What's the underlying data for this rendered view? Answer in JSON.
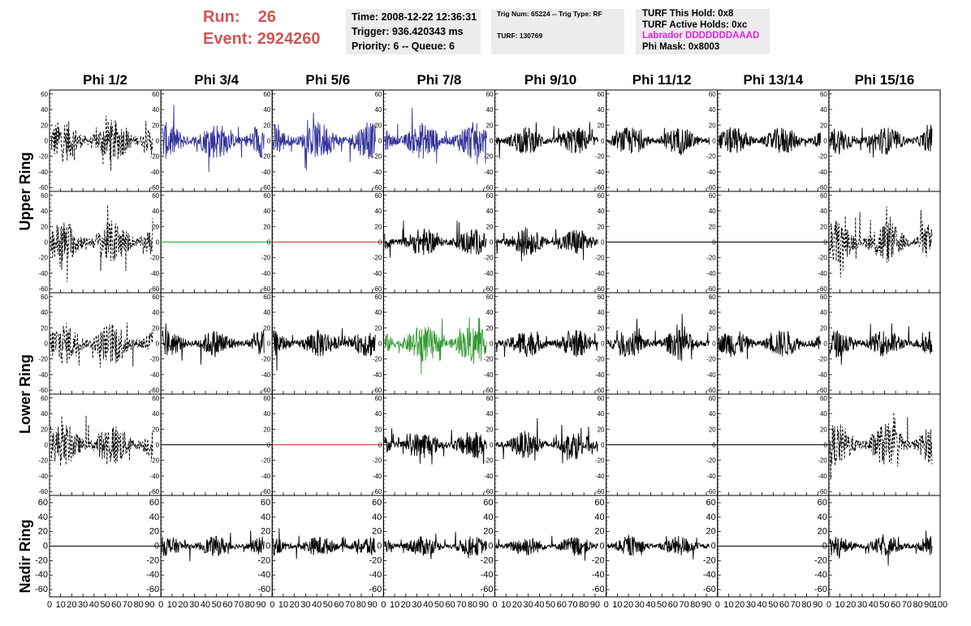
{
  "header": {
    "run_label": "Run:",
    "run_value": "26",
    "event_label": "Event:",
    "event_value": "2924260"
  },
  "info_panel": {
    "time": "Time: 2008-12-22 12:36:31",
    "trigger": "Trigger: 936.420343 ms",
    "priority": "Priority: 6 -- Queue: 6"
  },
  "trig_panel": {
    "trig": "Trig Num: 65224 -- Trig Type: RF",
    "turf": "TURF: 130769"
  },
  "turf_panel": {
    "this_hold": "TURF This Hold: 0x8",
    "active_holds": "TURF Active Holds: 0xc",
    "labrador": "Labrador DDDDDDDAAAD",
    "phi_mask": "Phi Mask: 0x8003"
  },
  "colors": {
    "dashed_black": "#000000",
    "blue": "#333399",
    "green_flat": "#22aa22",
    "red_flat": "#cc3333",
    "green_wave": "#339933",
    "labrador": "#e022e0",
    "title_red": "#d05555"
  },
  "chart_data": {
    "type": "line",
    "columns": [
      "Phi 1/2",
      "Phi 3/4",
      "Phi 5/6",
      "Phi 7/8",
      "Phi 9/10",
      "Phi 11/12",
      "Phi 13/14",
      "Phi 15/16"
    ],
    "ring_labels": [
      "Upper Ring",
      "Lower Ring",
      "Nadir Ring"
    ],
    "y_ticks": [
      -60,
      -40,
      -20,
      0,
      20,
      40,
      60
    ],
    "x_ticks": [
      0,
      10,
      20,
      30,
      40,
      50,
      60,
      70,
      80,
      90,
      100
    ],
    "xlim": [
      0,
      100
    ],
    "ylim": [
      -65,
      65
    ],
    "nadir_ylim": [
      -70,
      70
    ],
    "rows": [
      [
        "dashed",
        "blue",
        "blue",
        "blue",
        "solid",
        "solid",
        "solid",
        "solid"
      ],
      [
        "dashed",
        "flat-green",
        "flat-red",
        "solid",
        "solid",
        "flat",
        "flat",
        "dashed"
      ],
      [
        "dashed",
        "solid",
        "solid",
        "green",
        "solid",
        "solid",
        "solid",
        "solid"
      ],
      [
        "dashed",
        "flat",
        "flat-red",
        "solid",
        "solid",
        "flat",
        "flat",
        "dashed"
      ],
      [
        "flat",
        "solid",
        "solid",
        "solid",
        "solid",
        "solid",
        "flat",
        "solid"
      ]
    ]
  }
}
